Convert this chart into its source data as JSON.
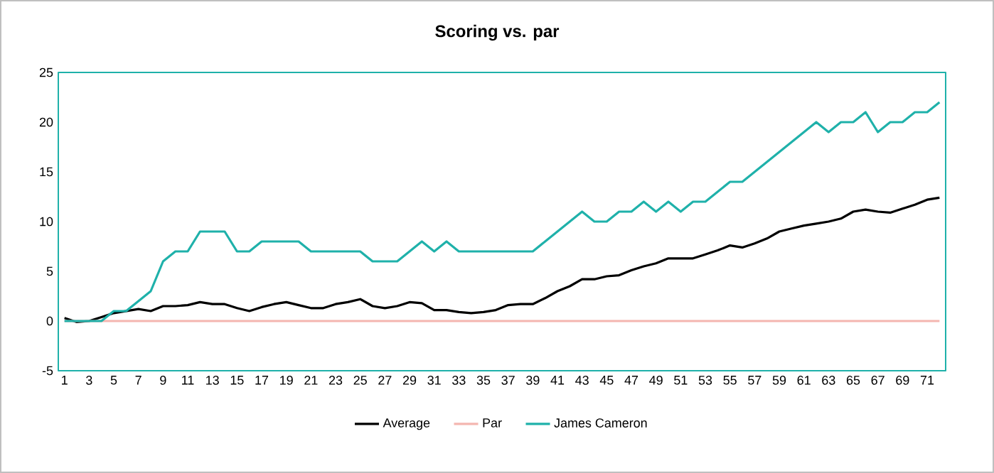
{
  "chart_data": {
    "type": "line",
    "title": "Scoring vs. par",
    "categories": [
      "1",
      null,
      "3",
      null,
      "5",
      null,
      "7",
      null,
      "9",
      null,
      "11",
      null,
      "13",
      null,
      "15",
      null,
      "17",
      null,
      "19",
      null,
      "21",
      null,
      "23",
      null,
      "25",
      null,
      "27",
      null,
      "29",
      null,
      "31",
      null,
      "33",
      null,
      "35",
      null,
      "37",
      null,
      "39",
      null,
      "41",
      null,
      "43",
      null,
      "45",
      null,
      "47",
      null,
      "49",
      null,
      "51",
      null,
      "53",
      null,
      "55",
      null,
      "57",
      null,
      "59",
      null,
      "61",
      null,
      "63",
      null,
      "65",
      null,
      "67",
      null,
      "69",
      null,
      "71",
      null
    ],
    "series": [
      {
        "name": "Average",
        "color": "#000000",
        "values": [
          0.3,
          -0.1,
          0,
          0.4,
          0.8,
          1.0,
          1.2,
          1.0,
          1.5,
          1.5,
          1.6,
          1.9,
          1.7,
          1.7,
          1.3,
          1.0,
          1.4,
          1.7,
          1.9,
          1.6,
          1.3,
          1.3,
          1.7,
          1.9,
          2.2,
          1.5,
          1.3,
          1.5,
          1.9,
          1.8,
          1.1,
          1.1,
          0.9,
          0.8,
          0.9,
          1.1,
          1.6,
          1.7,
          1.7,
          2.3,
          3.0,
          3.5,
          4.2,
          4.2,
          4.5,
          4.6,
          5.1,
          5.5,
          5.8,
          6.3,
          6.3,
          6.3,
          6.7,
          7.1,
          7.6,
          7.4,
          7.8,
          8.3,
          9.0,
          9.3,
          9.6,
          9.8,
          10.0,
          10.3,
          11.0,
          11.2,
          11.0,
          10.9,
          11.3,
          11.7,
          12.2,
          12.4
        ]
      },
      {
        "name": "Par",
        "color": "#f4b6b0",
        "values": [
          0,
          0,
          0,
          0,
          0,
          0,
          0,
          0,
          0,
          0,
          0,
          0,
          0,
          0,
          0,
          0,
          0,
          0,
          0,
          0,
          0,
          0,
          0,
          0,
          0,
          0,
          0,
          0,
          0,
          0,
          0,
          0,
          0,
          0,
          0,
          0,
          0,
          0,
          0,
          0,
          0,
          0,
          0,
          0,
          0,
          0,
          0,
          0,
          0,
          0,
          0,
          0,
          0,
          0,
          0,
          0,
          0,
          0,
          0,
          0,
          0,
          0,
          0,
          0,
          0,
          0,
          0,
          0,
          0,
          0,
          0,
          0
        ]
      },
      {
        "name": "James Cameron",
        "color": "#1fb1aa",
        "values": [
          0,
          0,
          0,
          0,
          1,
          1,
          2,
          3,
          6,
          7,
          7,
          9,
          9,
          9,
          7,
          7,
          8,
          8,
          8,
          8,
          7,
          7,
          7,
          7,
          7,
          6,
          6,
          6,
          7,
          8,
          7,
          8,
          7,
          7,
          7,
          7,
          7,
          7,
          7,
          8,
          9,
          10,
          11,
          10,
          10,
          11,
          11,
          12,
          11,
          12,
          11,
          12,
          12,
          13,
          14,
          14,
          15,
          16,
          17,
          18,
          19,
          20,
          19,
          20,
          20,
          21,
          19,
          20,
          20,
          21,
          21,
          22
        ]
      }
    ],
    "ylim": [
      -5,
      25
    ],
    "yticks": [
      -5,
      0,
      5,
      10,
      15,
      20,
      25
    ],
    "legend": "bottom",
    "grid": false,
    "marker": "none",
    "line_style": "solid"
  }
}
